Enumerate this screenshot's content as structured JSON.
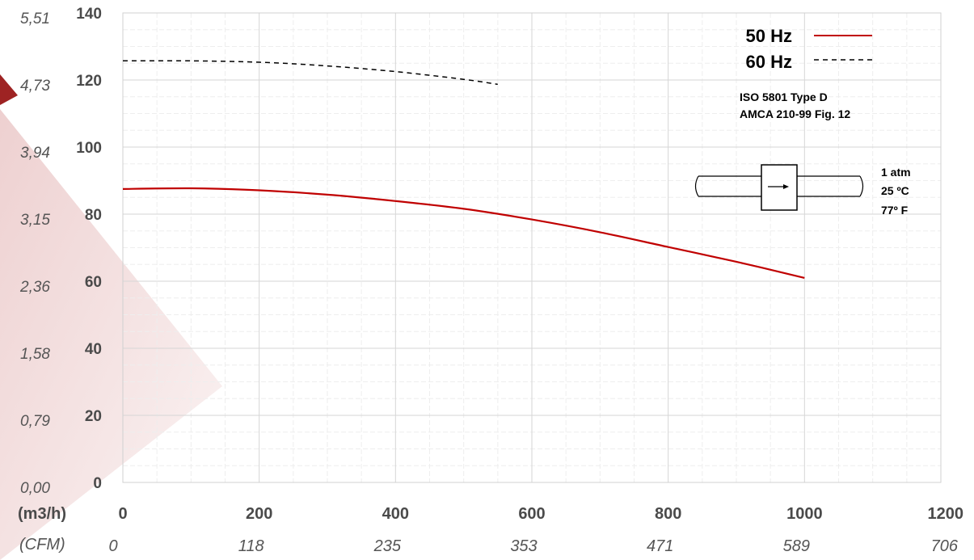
{
  "chart_data": {
    "type": "line",
    "xlim": [
      0,
      1200
    ],
    "ylim": [
      0,
      140
    ],
    "x_ticks": [
      "0",
      "200",
      "400",
      "600",
      "800",
      "1000",
      "1200"
    ],
    "x2_ticks": [
      "0",
      "118",
      "235",
      "353",
      "471",
      "589",
      "706"
    ],
    "y_ticks": [
      "0",
      "20",
      "40",
      "60",
      "80",
      "100",
      "120",
      "140"
    ],
    "y2_ticks": [
      "0,00",
      "0,79",
      "1,58",
      "2,36",
      "3,15",
      "3,94",
      "4,73",
      "5,51"
    ],
    "x_unit_label": "(m3/h)",
    "x2_unit_label": "(CFM)",
    "grid": true,
    "legend_position": "top-right",
    "series": [
      {
        "name": "50 Hz",
        "color": "#c00000",
        "style": "solid",
        "x": [
          0,
          100,
          200,
          300,
          400,
          500,
          600,
          700,
          800,
          900,
          1000
        ],
        "y": [
          87.5,
          87.7,
          87.1,
          85.8,
          83.9,
          81.6,
          78.4,
          74.6,
          70.2,
          65.8,
          61.0
        ]
      },
      {
        "name": "60 Hz",
        "color": "#000000",
        "style": "dashed",
        "x": [
          0,
          100,
          200,
          300,
          400,
          500,
          550
        ],
        "y": [
          125.7,
          125.7,
          125.3,
          124.2,
          122.5,
          120.2,
          118.7
        ]
      }
    ],
    "annotations": {
      "standard_line1": "ISO 5801   Type D",
      "standard_line2": "AMCA 210-99 Fig. 12",
      "conditions": [
        "1 atm",
        "25 ºC",
        "77º F"
      ]
    }
  }
}
